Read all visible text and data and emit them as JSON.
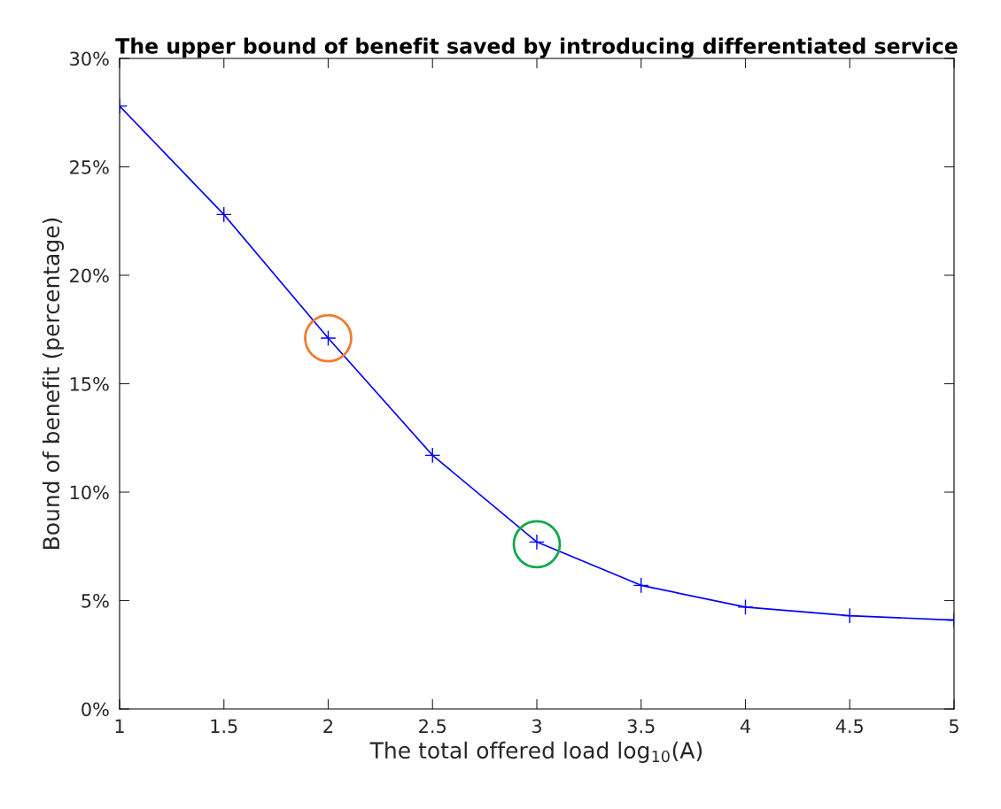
{
  "chart_data": {
    "type": "line",
    "title": "The upper bound of benefit saved by introducing differentiated service",
    "xlabel": "The total offered load log$_{10}$(A)",
    "ylabel": "Bound of benefit (percentage)",
    "x": [
      1,
      1.5,
      2,
      2.5,
      3,
      3.5,
      4,
      4.5,
      5
    ],
    "series": [
      {
        "color": "#0000ff",
        "marker": "cross",
        "values": [
          27.8,
          22.8,
          17.1,
          11.7,
          7.7,
          5.7,
          4.7,
          4.3,
          4.1
        ]
      },
      {
        "type": "scatter",
        "color": "#f07b2f",
        "marker": "circle",
        "x": [
          2
        ],
        "values": [
          17.1
        ]
      },
      {
        "type": "scatter",
        "color": "#14a84a",
        "marker": "circle",
        "x": [
          3
        ],
        "values": [
          7.6
        ]
      }
    ],
    "xlim": [
      1,
      5
    ],
    "xticks": [
      1,
      1.5,
      2,
      2.5,
      3,
      3.5,
      4,
      4.5,
      5
    ],
    "ylim": [
      0,
      30
    ],
    "yticks": [
      {
        "value": 0,
        "label": "0%"
      },
      {
        "value": 5,
        "label": "5%"
      },
      {
        "value": 10,
        "label": "10%"
      },
      {
        "value": 15,
        "label": "15%"
      },
      {
        "value": 20,
        "label": "20%"
      },
      {
        "value": 25,
        "label": "25%"
      },
      {
        "value": 30,
        "label": "30%"
      }
    ],
    "grid": false,
    "legend": false
  }
}
